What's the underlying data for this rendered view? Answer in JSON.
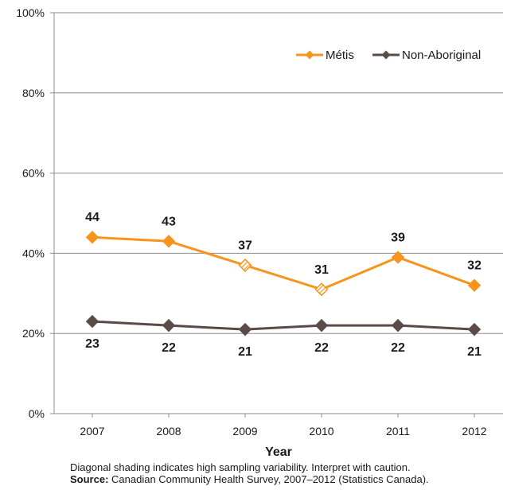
{
  "chart_data": {
    "type": "line",
    "xlabel": "Year",
    "ylabel": "",
    "ylim": [
      0,
      100
    ],
    "y_ticks": [
      "0%",
      "20%",
      "40%",
      "60%",
      "80%",
      "100%"
    ],
    "categories": [
      "2007",
      "2008",
      "2009",
      "2010",
      "2011",
      "2012"
    ],
    "grid": "horizontal",
    "legend_position": "top-right",
    "series": [
      {
        "name": "Métis",
        "color": "#f7941d",
        "values": [
          44,
          43,
          37,
          31,
          39,
          32
        ],
        "hatched": [
          false,
          false,
          true,
          true,
          false,
          false
        ]
      },
      {
        "name": "Non-Aboriginal",
        "color": "#5b4a45",
        "values": [
          23,
          22,
          21,
          22,
          22,
          21
        ],
        "hatched": [
          false,
          false,
          false,
          false,
          false,
          false
        ]
      }
    ]
  },
  "notes": {
    "caution": "Diagonal shading indicates high sampling variability. Interpret with caution.",
    "source_label": "Source:",
    "source_text": "Canadian Community Health Survey, 2007–2012 (Statistics Canada)."
  }
}
